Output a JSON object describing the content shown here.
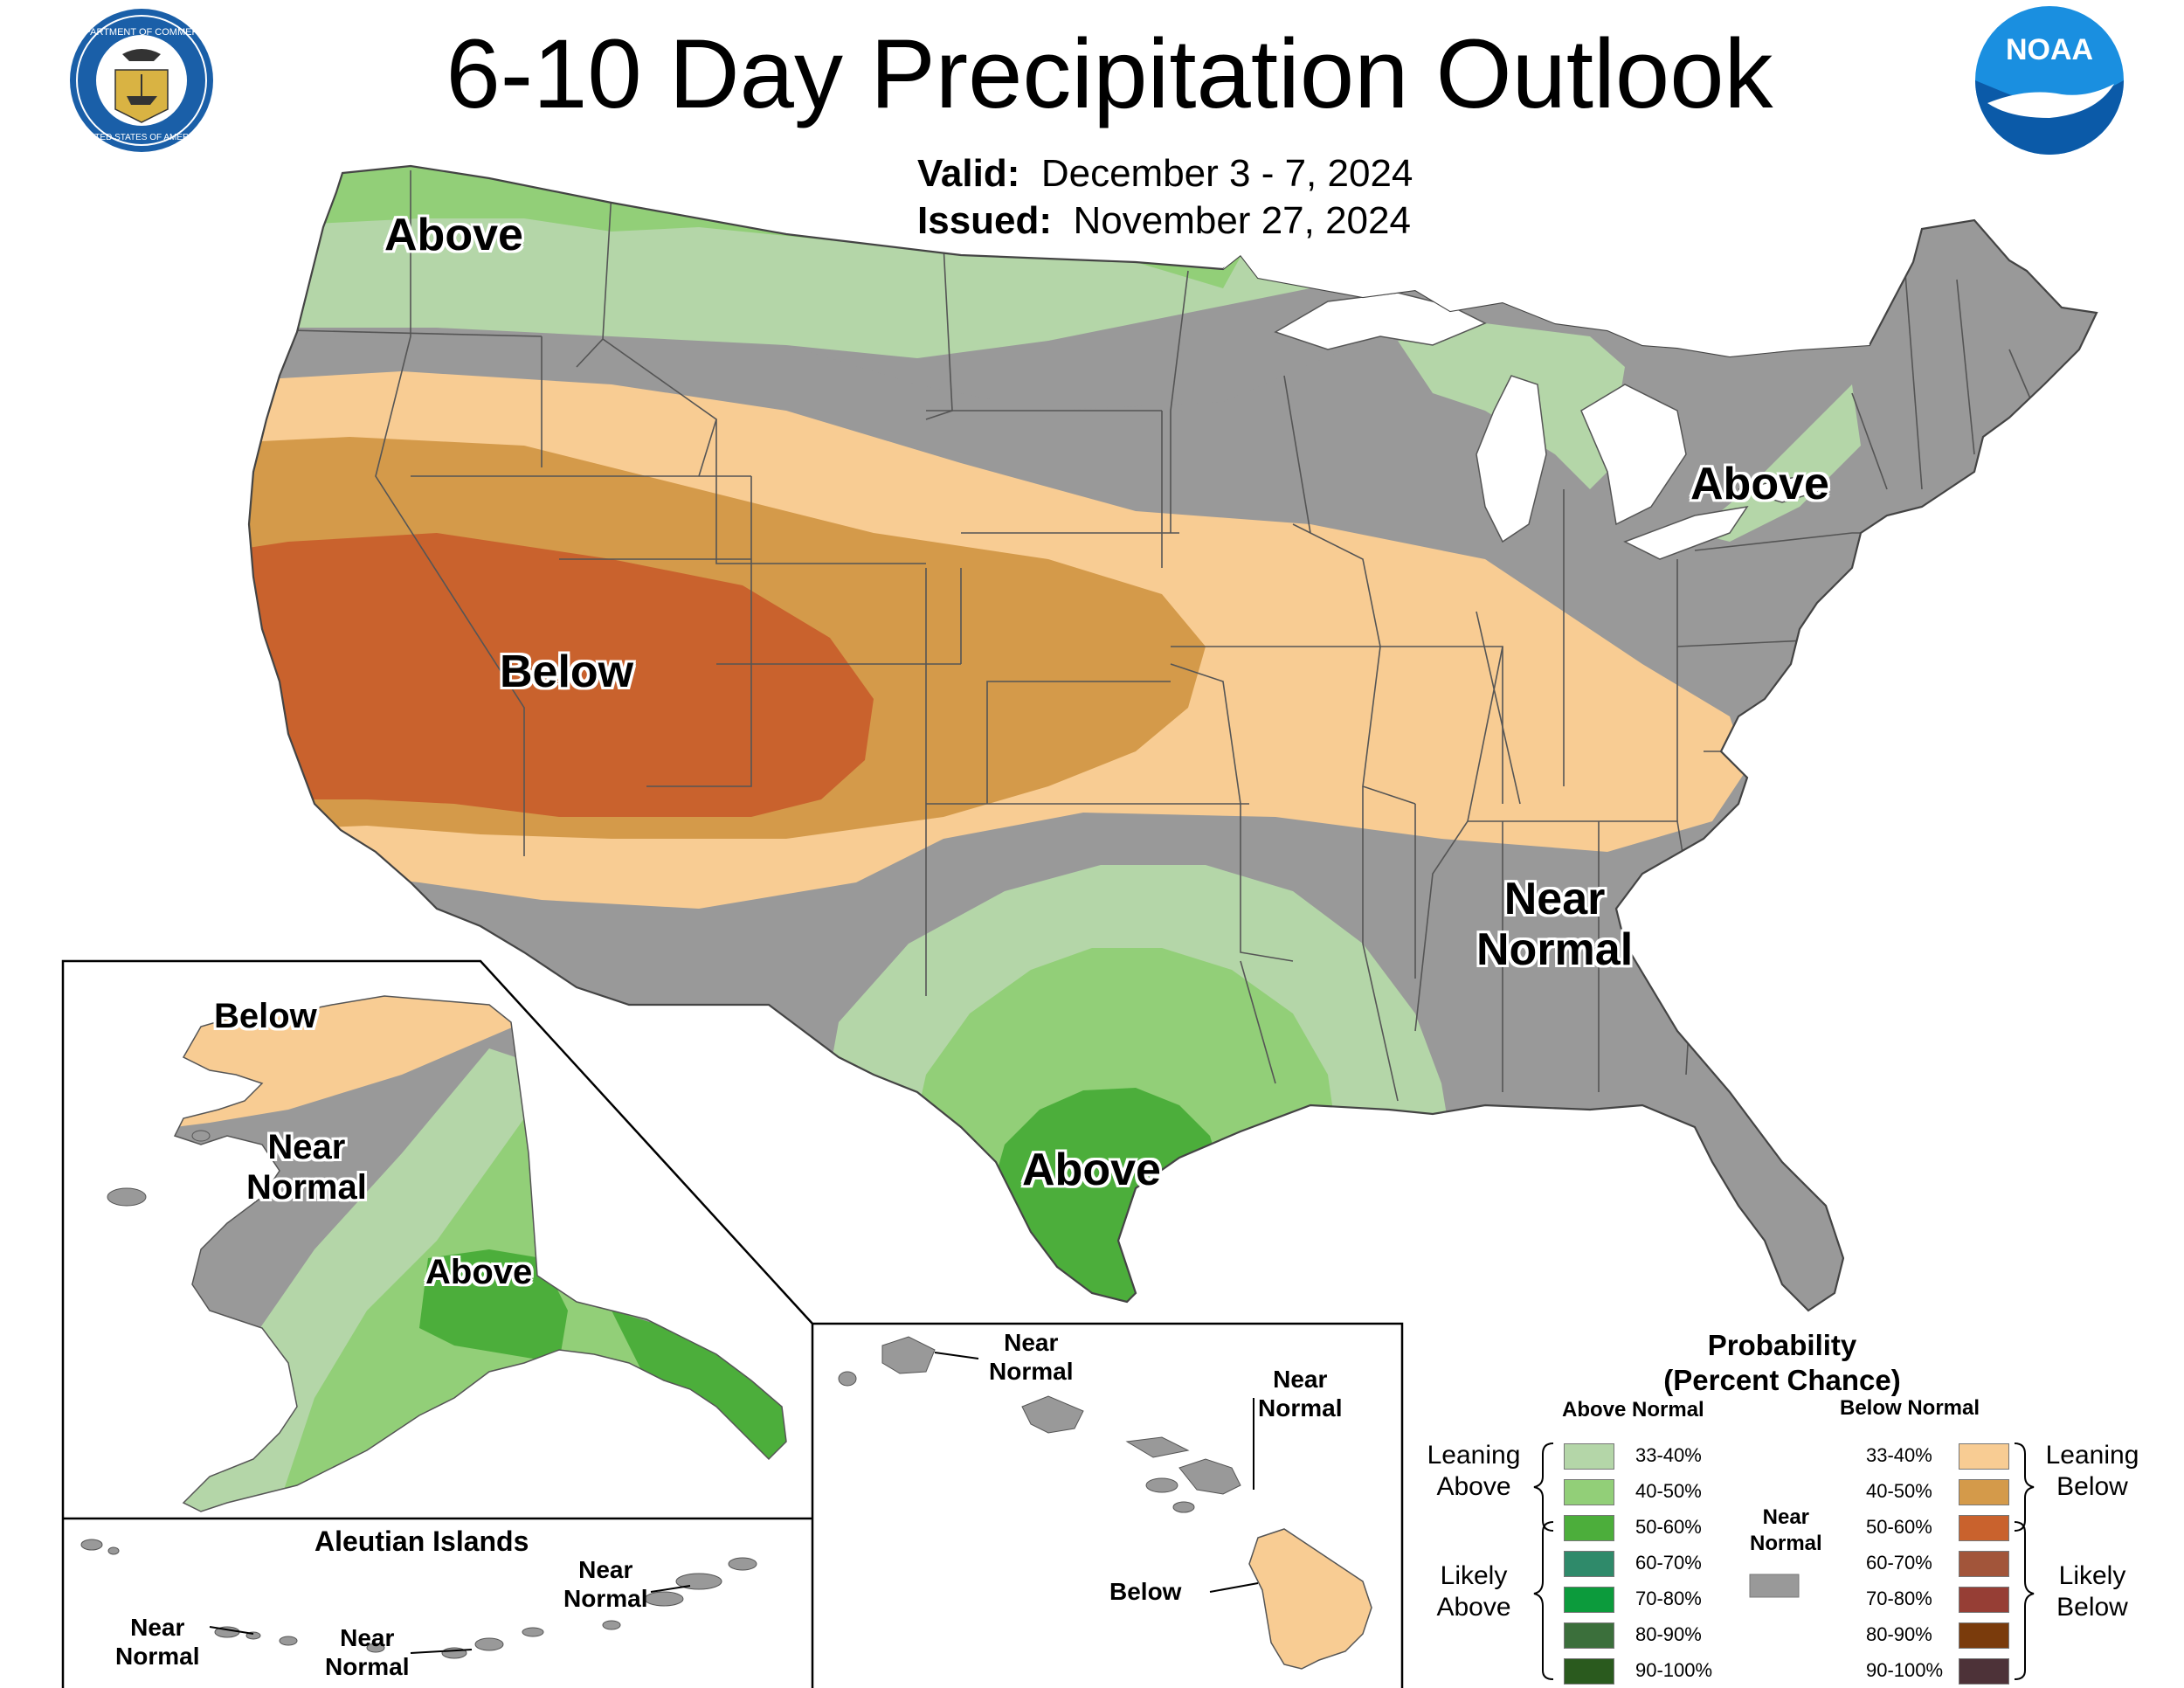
{
  "title": "6-10 Day Precipitation Outlook",
  "valid": {
    "label": "Valid:",
    "value": "December 3 - 7, 2024"
  },
  "issued": {
    "label": "Issued:",
    "value": "November 27, 2024"
  },
  "logos": {
    "commerce": {
      "icon": "department-of-commerce-seal",
      "text": [
        "DEPARTMENT OF COMMERCE",
        "UNITED STATES OF AMERICA"
      ]
    },
    "noaa": {
      "icon": "noaa-logo",
      "text": "NOAA"
    }
  },
  "conus_labels": {
    "above_northwest": "Above",
    "below_west": "Below",
    "above_northeast": "Above",
    "near_normal_southeast": [
      "Near",
      "Normal"
    ],
    "above_texas": "Above"
  },
  "alaska_labels": {
    "below": "Below",
    "near_normal": [
      "Near",
      "Normal"
    ],
    "above": "Above"
  },
  "aleutians": {
    "title": "Aleutian Islands",
    "labels": [
      [
        "Near",
        "Normal"
      ],
      [
        "Near",
        "Normal"
      ],
      [
        "Near",
        "Normal"
      ]
    ]
  },
  "hawaii_labels": {
    "kauai": [
      "Near",
      "Normal"
    ],
    "maui": [
      "Near",
      "Normal"
    ],
    "big_island": "Below"
  },
  "legend": {
    "title": [
      "Probability",
      "(Percent Chance)"
    ],
    "above_header": "Above Normal",
    "below_header": "Below Normal",
    "near_normal": [
      "Near",
      "Normal"
    ],
    "near_normal_color": "#999999",
    "leaning_above": [
      "Leaning",
      "Above"
    ],
    "likely_above": [
      "Likely",
      "Above"
    ],
    "leaning_below": [
      "Leaning",
      "Below"
    ],
    "likely_below": [
      "Likely",
      "Below"
    ],
    "above": [
      {
        "range": "33-40%",
        "color": "#b4d6a8"
      },
      {
        "range": "40-50%",
        "color": "#92cf78"
      },
      {
        "range": "50-60%",
        "color": "#4cae3b"
      },
      {
        "range": "60-70%",
        "color": "#2f8a6a"
      },
      {
        "range": "70-80%",
        "color": "#0c9b3c"
      },
      {
        "range": "80-90%",
        "color": "#3b6f3b"
      },
      {
        "range": "90-100%",
        "color": "#2a5a1e"
      }
    ],
    "below": [
      {
        "range": "33-40%",
        "color": "#f8cc93"
      },
      {
        "range": "40-50%",
        "color": "#d49a4a"
      },
      {
        "range": "50-60%",
        "color": "#c9622d"
      },
      {
        "range": "60-70%",
        "color": "#a2553a"
      },
      {
        "range": "70-80%",
        "color": "#963e35"
      },
      {
        "range": "80-90%",
        "color": "#7a3b0c"
      },
      {
        "range": "90-100%",
        "color": "#4d3238"
      }
    ]
  }
}
